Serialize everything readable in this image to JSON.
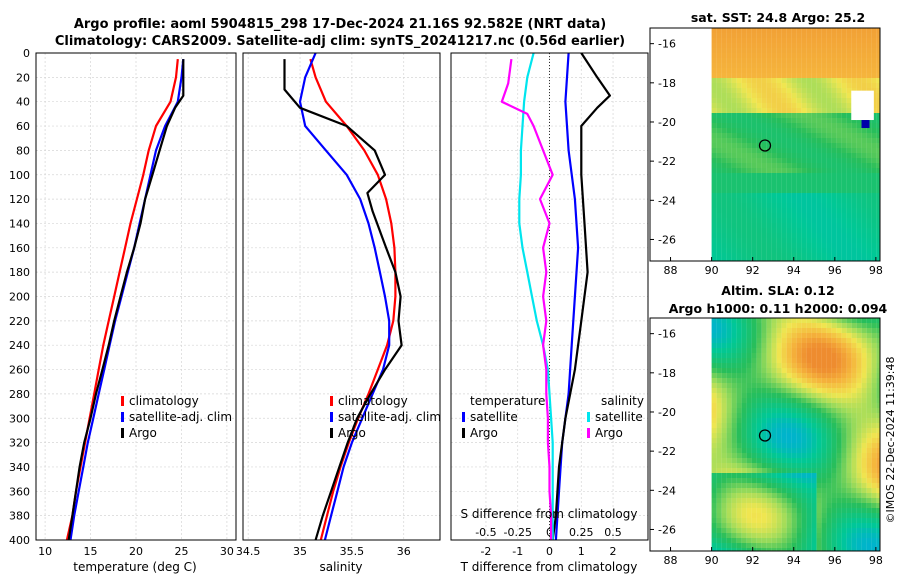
{
  "title_line1": "Argo profile: aoml 5904815_298 17-Dec-2024 21.16S 92.582E (NRT data)",
  "title_line2": "Climatology: CARS2009. Satellite-adj clim: synTS_20241217.nc (0.56d earlier)",
  "colors": {
    "climatology": "#ff0000",
    "satellite": "#0000ff",
    "argo": "#000000",
    "t_diff": "#00e5ee",
    "s_diff": "#ff00ff"
  },
  "depth_ticks": [
    "0",
    "20",
    "40",
    "60",
    "80",
    "100",
    "120",
    "140",
    "160",
    "180",
    "200",
    "220",
    "240",
    "260",
    "280",
    "300",
    "320",
    "340",
    "360",
    "380",
    "400"
  ],
  "chart_data": [
    {
      "type": "line",
      "name": "temperature-profile",
      "xlabel": "temperature (deg C)",
      "xlim": [
        9,
        31
      ],
      "ylim": [
        400,
        0
      ],
      "xtick_labels": [
        "10",
        "15",
        "20",
        "25",
        "30"
      ],
      "xtick_values": [
        10,
        15,
        20,
        25,
        30
      ],
      "legend": [
        "climatology",
        "satellite-adj. clim",
        "Argo"
      ],
      "series": [
        {
          "name": "climatology",
          "depth": [
            5,
            20,
            40,
            60,
            80,
            100,
            120,
            140,
            160,
            180,
            200,
            220,
            240,
            260,
            280,
            300,
            320,
            340,
            360,
            380,
            400
          ],
          "values": [
            24.6,
            24.4,
            23.8,
            22.2,
            21.4,
            20.8,
            20.1,
            19.4,
            18.8,
            18.2,
            17.6,
            17.0,
            16.4,
            15.9,
            15.4,
            14.9,
            14.4,
            13.9,
            13.4,
            13.0,
            12.4
          ]
        },
        {
          "name": "satellite-adj. clim",
          "depth": [
            5,
            20,
            40,
            60,
            80,
            100,
            120,
            140,
            160,
            180,
            200,
            220,
            240,
            260,
            280,
            300,
            320,
            340,
            360,
            380,
            400
          ],
          "values": [
            25.2,
            25.0,
            24.6,
            23.2,
            22.2,
            21.6,
            21.0,
            20.4,
            19.8,
            19.1,
            18.4,
            17.7,
            17.1,
            16.5,
            15.9,
            15.3,
            14.7,
            14.2,
            13.7,
            13.2,
            12.8
          ]
        },
        {
          "name": "Argo",
          "depth": [
            5,
            20,
            35,
            45,
            60,
            80,
            100,
            120,
            140,
            160,
            180,
            200,
            220,
            240,
            260,
            280,
            300,
            320,
            340,
            360,
            380,
            400
          ],
          "values": [
            25.2,
            25.2,
            25.2,
            24.3,
            23.4,
            22.6,
            21.8,
            21.0,
            20.5,
            19.8,
            19.0,
            18.3,
            17.6,
            17.0,
            16.3,
            15.6,
            15.0,
            14.3,
            13.8,
            13.4,
            13.0,
            12.6
          ]
        }
      ]
    },
    {
      "type": "line",
      "name": "salinity-profile",
      "xlabel": "salinity",
      "xlim": [
        34.45,
        36.35
      ],
      "ylim": [
        400,
        0
      ],
      "xtick_labels": [
        "34.5",
        "35",
        "35.5",
        "36"
      ],
      "xtick_values": [
        34.5,
        35,
        35.5,
        36
      ],
      "legend": [
        "climatology",
        "satellite-adj. clim",
        "Argo"
      ],
      "series": [
        {
          "name": "climatology",
          "depth": [
            5,
            20,
            40,
            60,
            80,
            100,
            120,
            140,
            160,
            180,
            200,
            220,
            240,
            260,
            280,
            300,
            320,
            340,
            360,
            380,
            400
          ],
          "values": [
            35.1,
            35.15,
            35.25,
            35.45,
            35.62,
            35.75,
            35.83,
            35.88,
            35.91,
            35.92,
            35.92,
            35.9,
            35.84,
            35.75,
            35.66,
            35.56,
            35.47,
            35.39,
            35.32,
            35.26,
            35.2
          ]
        },
        {
          "name": "satellite-adj. clim",
          "depth": [
            0,
            20,
            40,
            60,
            80,
            100,
            120,
            140,
            160,
            180,
            200,
            220,
            240,
            260,
            280,
            300,
            320,
            340,
            360,
            380,
            400
          ],
          "values": [
            35.15,
            35.05,
            35.0,
            35.05,
            35.25,
            35.45,
            35.58,
            35.66,
            35.72,
            35.77,
            35.82,
            35.86,
            35.86,
            35.8,
            35.7,
            35.6,
            35.5,
            35.42,
            35.36,
            35.3,
            35.24
          ]
        },
        {
          "name": "Argo",
          "depth": [
            5,
            30,
            45,
            60,
            80,
            100,
            115,
            130,
            160,
            180,
            200,
            220,
            240,
            260,
            280,
            300,
            320,
            340,
            360,
            380,
            400
          ],
          "values": [
            34.85,
            34.85,
            35.0,
            35.45,
            35.72,
            35.82,
            35.65,
            35.7,
            35.83,
            35.92,
            35.97,
            35.95,
            35.98,
            35.82,
            35.68,
            35.55,
            35.46,
            35.38,
            35.3,
            35.22,
            35.15
          ]
        }
      ]
    },
    {
      "type": "line",
      "name": "difference-profile",
      "xlabel": "T difference from climatology",
      "x2label": "S difference from climatology",
      "xlim": [
        -3.1,
        3.1
      ],
      "ylim": [
        400,
        0
      ],
      "xtick_labels": [
        "-2",
        "-1",
        "0",
        "1",
        "2"
      ],
      "xtick_values": [
        -2,
        -1,
        0,
        1,
        2
      ],
      "x2tick_labels": [
        "-0.5",
        "-0.25",
        "0",
        "0.25",
        "0.5"
      ],
      "x2tick_values": [
        -2,
        -1,
        0,
        1,
        2
      ],
      "legend_temperature": {
        "heading": "temperature",
        "entries": [
          "satellite",
          "Argo"
        ]
      },
      "legend_salinity": {
        "heading": "salinity",
        "entries": [
          "satellite",
          "Argo"
        ]
      },
      "series": [
        {
          "name": "T satellite",
          "depth": [
            0,
            40,
            80,
            120,
            160,
            200,
            240,
            280,
            320,
            360,
            400
          ],
          "values": [
            0.6,
            0.5,
            0.6,
            0.8,
            0.9,
            0.8,
            0.7,
            0.6,
            0.4,
            0.3,
            0.2
          ]
        },
        {
          "name": "T Argo",
          "depth": [
            0,
            20,
            35,
            45,
            60,
            80,
            100,
            140,
            180,
            220,
            260,
            300,
            340,
            380,
            400
          ],
          "values": [
            1.0,
            1.5,
            1.9,
            1.5,
            1.0,
            1.0,
            1.0,
            1.1,
            1.2,
            1.0,
            0.8,
            0.5,
            0.3,
            0.2,
            0.1
          ]
        },
        {
          "name": "S satellite",
          "depth": [
            0,
            20,
            40,
            60,
            80,
            100,
            120,
            140,
            160,
            180,
            200,
            220,
            240,
            260,
            280,
            300,
            320,
            340,
            360,
            380,
            400
          ],
          "values": [
            -0.5,
            -0.7,
            -0.8,
            -0.85,
            -0.9,
            -0.9,
            -0.95,
            -0.95,
            -0.85,
            -0.7,
            -0.55,
            -0.4,
            -0.2,
            -0.05,
            0.0,
            0.05,
            0.1,
            0.1,
            0.1,
            0.1,
            0.1
          ]
        },
        {
          "name": "S Argo",
          "depth": [
            5,
            25,
            40,
            50,
            60,
            80,
            100,
            120,
            140,
            160,
            180,
            200,
            220,
            240,
            260,
            280,
            300,
            320,
            340,
            360,
            380,
            400
          ],
          "values": [
            -1.2,
            -1.3,
            -1.5,
            -0.7,
            -0.5,
            -0.2,
            0.1,
            -0.3,
            0.0,
            -0.2,
            -0.1,
            -0.2,
            -0.1,
            -0.2,
            -0.1,
            -0.1,
            -0.05,
            -0.05,
            0.0,
            0.0,
            0.05,
            0.05
          ]
        }
      ]
    }
  ],
  "maps": [
    {
      "name": "sst-map",
      "title": "sat. SST: 24.8 Argo: 25.2",
      "ytick_labels": [
        "-16",
        "-18",
        "-20",
        "-22",
        "-24",
        "-26"
      ],
      "xtick_labels": [
        "88",
        "90",
        "92",
        "94",
        "96",
        "98"
      ],
      "marker": {
        "lon": 92.6,
        "lat": -21.2
      }
    },
    {
      "name": "sla-map",
      "title_line1": "Altim. SLA: 0.12",
      "title_line2": "Argo h1000: 0.11 h2000: 0.094",
      "ytick_labels": [
        "-16",
        "-18",
        "-20",
        "-22",
        "-24",
        "-26"
      ],
      "xtick_labels": [
        "88",
        "90",
        "92",
        "94",
        "96",
        "98"
      ],
      "marker": {
        "lon": 92.6,
        "lat": -21.2
      }
    }
  ],
  "stamp": "©IMOS 22-Dec-2024 11:39:48"
}
